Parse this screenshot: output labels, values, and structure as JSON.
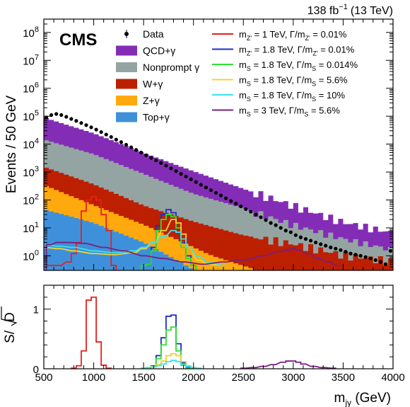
{
  "header": {
    "experiment": "CMS",
    "lumi": "138 fb",
    "lumi_exp": "−1",
    "energy": "(13 TeV)"
  },
  "chart_data": [
    {
      "type": "stacked-histogram",
      "ylabel": "Events / 50 GeV",
      "yscale": "log",
      "xlim": [
        500,
        4000
      ],
      "ylim": [
        0.3,
        300000000
      ],
      "bin_width": 50,
      "yticks": [
        {
          "value": 1,
          "base": "10",
          "exp": "0"
        },
        {
          "value": 10,
          "base": "10",
          "exp": "1"
        },
        {
          "value": 100,
          "base": "10",
          "exp": "2"
        },
        {
          "value": 1000,
          "base": "10",
          "exp": "3"
        },
        {
          "value": 10000,
          "base": "10",
          "exp": "4"
        },
        {
          "value": 100000,
          "base": "10",
          "exp": "5"
        },
        {
          "value": 1000000,
          "base": "10",
          "exp": "6"
        },
        {
          "value": 10000000,
          "base": "10",
          "exp": "7"
        },
        {
          "value": 100000000,
          "base": "10",
          "exp": "8"
        }
      ],
      "background_knots": [
        {
          "name": "Top+γ",
          "color": "#3f90da",
          "knots": [
            [
              500,
              45
            ],
            [
              700,
              30
            ],
            [
              1000,
              15
            ],
            [
              1500,
              3
            ],
            [
              1800,
              0.8
            ],
            [
              2100,
              0.2
            ],
            [
              4000,
              0.01
            ]
          ]
        },
        {
          "name": "Z+γ",
          "color": "#ffa90e",
          "knots": [
            [
              500,
              300
            ],
            [
              1000,
              50
            ],
            [
              1500,
              10
            ],
            [
              1900,
              2.5
            ],
            [
              2200,
              0.8
            ],
            [
              2600,
              0.25
            ],
            [
              4000,
              0.02
            ]
          ]
        },
        {
          "name": "W+γ",
          "color": "#bd1f01",
          "knots": [
            [
              500,
              1200
            ],
            [
              1000,
              300
            ],
            [
              1500,
              50
            ],
            [
              2000,
              15
            ],
            [
              2500,
              5
            ],
            [
              3000,
              2.5
            ],
            [
              3500,
              1
            ],
            [
              4000,
              0.6
            ]
          ]
        },
        {
          "name": "Nonprompt γ",
          "color": "#94a4a2",
          "knots": [
            [
              500,
              13000
            ],
            [
              1000,
              4000
            ],
            [
              1500,
              800
            ],
            [
              2000,
              150
            ],
            [
              2500,
              45
            ],
            [
              3000,
              10
            ],
            [
              3500,
              3
            ],
            [
              4000,
              1
            ]
          ]
        },
        {
          "name": "QCD+γ",
          "color": "#832db6",
          "knots": [
            [
              500,
              75000
            ],
            [
              1000,
              20000
            ],
            [
              1500,
              4000
            ],
            [
              2000,
              900
            ],
            [
              2500,
              200
            ],
            [
              3000,
              50
            ],
            [
              3500,
              12
            ],
            [
              4000,
              5
            ]
          ]
        }
      ],
      "data_points": {
        "name": "Data",
        "x": [
          525,
          575,
          625,
          675,
          725,
          775,
          825,
          875,
          925,
          975,
          1025,
          1075,
          1125,
          1175,
          1225,
          1275,
          1325,
          1375,
          1425,
          1475,
          1525,
          1575,
          1625,
          1675,
          1725,
          1775,
          1825,
          1875,
          1925,
          1975,
          2025,
          2075,
          2125,
          2175,
          2225,
          2275,
          2325,
          2375,
          2425,
          2475,
          2525,
          2575,
          2625,
          2675,
          2725,
          2775,
          2825,
          2875,
          2925,
          2975,
          3025,
          3075,
          3125,
          3175,
          3225,
          3275,
          3325,
          3375,
          3425,
          3475,
          3525,
          3575,
          3625,
          3675,
          3725,
          3775,
          3825,
          3875,
          3925,
          3975
        ],
        "y": [
          90000,
          110000,
          120000,
          110000,
          95000,
          80000,
          68000,
          57000,
          48000,
          40000,
          33000,
          27000,
          22000,
          18000,
          14500,
          11800,
          9500,
          7700,
          6200,
          5000,
          4000,
          3200,
          2600,
          2100,
          1700,
          1350,
          1080,
          860,
          690,
          550,
          440,
          350,
          280,
          225,
          180,
          145,
          115,
          92,
          74,
          59,
          47,
          38,
          30,
          24,
          19,
          15,
          12.5,
          10,
          8,
          7,
          5.5,
          4.6,
          4,
          3.5,
          3,
          2.6,
          2.3,
          2,
          1.8,
          1.6,
          1.4,
          1.2,
          1.1,
          1,
          0.9,
          0.8,
          0.7,
          0.6,
          0.5,
          1.5
        ]
      },
      "signals": [
        {
          "name": "m_Z' = 1 TeV, Γ/m_Z' = 0.01%",
          "color": "#e8201a",
          "x": [
            550,
            650,
            750,
            800,
            850,
            900,
            950,
            1000,
            1050,
            1100,
            1150,
            1200
          ],
          "y": [
            0.45,
            0.45,
            0.6,
            1.2,
            3,
            40,
            100,
            130,
            100,
            30,
            8,
            0.45
          ],
          "closed": true
        },
        {
          "name": "m_Z' = 1.8 TeV, Γ/m_Z' = 0.01%",
          "color": "#1a2ecb",
          "x": [
            1500,
            1550,
            1600,
            1650,
            1700,
            1750,
            1800,
            1850,
            1900,
            1950,
            2000
          ],
          "y": [
            0.45,
            0.5,
            2,
            12,
            30,
            45,
            35,
            15,
            3,
            1,
            0.45
          ],
          "closed": true
        },
        {
          "name": "m_S = 1.8 TeV, Γ/m_S = 0.014%",
          "color": "#2ee02e",
          "x": [
            1500,
            1550,
            1600,
            1650,
            1700,
            1750,
            1800,
            1850,
            1900,
            1950,
            2000
          ],
          "y": [
            0.45,
            0.5,
            1.5,
            8,
            20,
            30,
            25,
            10,
            2,
            0.8,
            0.45
          ],
          "closed": true
        },
        {
          "name": "m_S = 1.8 TeV, Γ/m_S = 5.6%",
          "color": "#f1d430",
          "x": [
            500,
            650,
            800,
            1000,
            1200,
            1400,
            1500,
            1600,
            1700,
            1800,
            1850,
            1900,
            1950,
            2050,
            2150,
            2300
          ],
          "y": [
            2,
            1.8,
            1.5,
            1.2,
            1.1,
            1.3,
            1.8,
            3,
            8,
            20,
            15,
            6,
            2,
            0.7,
            0.5,
            0.45
          ],
          "closed": false
        },
        {
          "name": "m_S = 1.8 TeV, Γ/m_S = 10%",
          "color": "#38e5ea",
          "x": [
            500,
            650,
            800,
            1000,
            1200,
            1400,
            1500,
            1600,
            1700,
            1800,
            1850,
            1900,
            1950,
            2050,
            2150,
            2300
          ],
          "y": [
            2.5,
            2.2,
            2,
            1.5,
            1.3,
            1.5,
            2,
            3,
            5,
            8,
            7,
            4,
            2,
            0.9,
            0.6,
            0.45
          ],
          "closed": false
        },
        {
          "name": "m_S = 3 TeV, Γ/m_S = 5.6%",
          "color": "#7a1f7e",
          "x": [
            550,
            650,
            750,
            900,
            1100,
            1300,
            1500,
            1700,
            1900,
            2100,
            2300,
            2500,
            2700,
            2850,
            2950,
            3000,
            3050,
            3150,
            3250,
            3350,
            3450
          ],
          "y": [
            2.5,
            3,
            3,
            2.8,
            2,
            1.5,
            1,
            0.8,
            0.6,
            0.5,
            0.6,
            0.7,
            1,
            1.4,
            1.6,
            1.8,
            1.6,
            1.2,
            0.8,
            0.6,
            0.45
          ],
          "closed": false
        }
      ],
      "legend": [
        {
          "label": "Data",
          "marker": "point"
        },
        {
          "label": "QCD+γ",
          "marker": "box",
          "color": "#832db6"
        },
        {
          "label": "Nonprompt γ",
          "marker": "box",
          "color": "#94a4a2"
        },
        {
          "label": "W+γ",
          "marker": "box",
          "color": "#bd1f01"
        },
        {
          "label": "Z+γ",
          "marker": "box",
          "color": "#ffa90e"
        },
        {
          "label": "Top+γ",
          "marker": "box",
          "color": "#3f90da"
        }
      ],
      "signal_legend": [
        {
          "color": "#e8201a",
          "parts": [
            "m",
            "Z'",
            " = 1 TeV,    Γ/m",
            "Z'",
            " = 0.01%"
          ]
        },
        {
          "color": "#1a2ecb",
          "parts": [
            "m",
            "Z'",
            " = 1.8 TeV,  Γ/m",
            "Z'",
            " = 0.01%"
          ]
        },
        {
          "color": "#2ee02e",
          "parts": [
            "m",
            "S",
            " = 1.8 TeV,  Γ/m",
            "S",
            " = 0.014%"
          ]
        },
        {
          "color": "#f1d430",
          "parts": [
            "m",
            "S",
            " = 1.8 TeV,  Γ/m",
            "S",
            " = 5.6%"
          ]
        },
        {
          "color": "#38e5ea",
          "parts": [
            "m",
            "S",
            " = 1.8 TeV,  Γ/m",
            "S",
            " = 10%"
          ]
        },
        {
          "color": "#7a1f7e",
          "parts": [
            "m",
            "S",
            " = 3 TeV,     Γ/m",
            "S",
            " = 5.6%"
          ]
        }
      ]
    },
    {
      "type": "step-line",
      "ylabel_prefix": "S/",
      "ylabel_radicand": "D",
      "xlabel_main": "m",
      "xlabel_sub": "jγ",
      "xlabel_unit": " (GeV)",
      "xlim": [
        500,
        4000
      ],
      "ylim": [
        0,
        1.4
      ],
      "xticks": [
        500,
        1000,
        1500,
        2000,
        2500,
        3000,
        3500,
        4000
      ],
      "yticks": [
        0,
        1
      ],
      "series": [
        {
          "color": "#e8201a",
          "x": [
            800,
            850,
            900,
            950,
            1000,
            1050,
            1100,
            1150
          ],
          "y": [
            0.01,
            0.05,
            0.3,
            1.15,
            1.2,
            0.45,
            0.06,
            0.01
          ]
        },
        {
          "color": "#1a2ecb",
          "x": [
            1550,
            1600,
            1650,
            1700,
            1750,
            1800,
            1850,
            1900,
            1950
          ],
          "y": [
            0.01,
            0.05,
            0.22,
            0.52,
            0.88,
            0.9,
            0.42,
            0.1,
            0.02
          ]
        },
        {
          "color": "#2ee02e",
          "x": [
            1550,
            1600,
            1650,
            1700,
            1750,
            1800,
            1850,
            1900,
            1950
          ],
          "y": [
            0.01,
            0.04,
            0.17,
            0.4,
            0.65,
            0.7,
            0.3,
            0.06,
            0.01
          ]
        },
        {
          "color": "#f1d430",
          "x": [
            1500,
            1550,
            1600,
            1650,
            1700,
            1750,
            1800,
            1850,
            1900,
            1950,
            2000,
            2050
          ],
          "y": [
            0.01,
            0.02,
            0.04,
            0.07,
            0.13,
            0.22,
            0.25,
            0.22,
            0.12,
            0.05,
            0.02,
            0.01
          ]
        },
        {
          "color": "#38e5ea",
          "x": [
            1500,
            1550,
            1600,
            1650,
            1700,
            1750,
            1800,
            1850,
            1900,
            1950,
            2000,
            2050
          ],
          "y": [
            0.01,
            0.02,
            0.03,
            0.05,
            0.08,
            0.12,
            0.14,
            0.12,
            0.08,
            0.04,
            0.02,
            0.01
          ]
        },
        {
          "color": "#7a1f7e",
          "x": [
            2500,
            2600,
            2700,
            2800,
            2900,
            2950,
            3000,
            3050,
            3100,
            3200,
            3300,
            3400
          ],
          "y": [
            0.01,
            0.02,
            0.04,
            0.07,
            0.11,
            0.13,
            0.13,
            0.11,
            0.08,
            0.04,
            0.02,
            0.01
          ]
        }
      ]
    }
  ]
}
